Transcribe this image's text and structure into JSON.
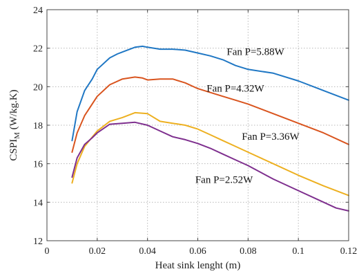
{
  "chart_data": {
    "type": "line",
    "xlabel": "Heat sink lenght (m)",
    "ylabel_main": "CSPI",
    "ylabel_sub": "M",
    "ylabel_unit": " (W/kg.K)",
    "xlim": [
      0,
      0.12
    ],
    "ylim": [
      12,
      24
    ],
    "x_ticks": [
      0,
      0.02,
      0.04,
      0.06,
      0.08,
      0.1,
      0.12
    ],
    "x_tick_labels": [
      "0",
      "0.02",
      "0.04",
      "0.06",
      "0.08",
      "0.1",
      "0.12"
    ],
    "y_ticks": [
      12,
      14,
      16,
      18,
      20,
      22,
      24
    ],
    "y_tick_labels": [
      "12",
      "14",
      "16",
      "18",
      "20",
      "22",
      "24"
    ],
    "grid": true,
    "series": [
      {
        "name": "Fan P=5.88W",
        "color": "#1f77c4",
        "label_at": [
          0.0715,
          21.65
        ],
        "x": [
          0.01,
          0.012,
          0.015,
          0.018,
          0.02,
          0.025,
          0.028,
          0.03,
          0.035,
          0.038,
          0.04,
          0.045,
          0.05,
          0.055,
          0.06,
          0.065,
          0.07,
          0.075,
          0.08,
          0.09,
          0.1,
          0.11,
          0.12
        ],
        "y": [
          17.2,
          18.7,
          19.8,
          20.4,
          20.9,
          21.5,
          21.7,
          21.8,
          22.05,
          22.1,
          22.05,
          21.95,
          21.95,
          21.9,
          21.75,
          21.6,
          21.4,
          21.1,
          20.9,
          20.7,
          20.3,
          19.8,
          19.3
        ]
      },
      {
        "name": "Fan P=4.32W",
        "color": "#d9541e",
        "label_at": [
          0.0635,
          19.75
        ],
        "x": [
          0.01,
          0.012,
          0.015,
          0.02,
          0.025,
          0.03,
          0.035,
          0.038,
          0.04,
          0.045,
          0.05,
          0.055,
          0.06,
          0.065,
          0.07,
          0.075,
          0.08,
          0.09,
          0.1,
          0.11,
          0.12
        ],
        "y": [
          16.6,
          17.6,
          18.5,
          19.5,
          20.1,
          20.4,
          20.5,
          20.45,
          20.35,
          20.4,
          20.4,
          20.2,
          19.9,
          19.7,
          19.5,
          19.3,
          19.1,
          18.6,
          18.1,
          17.6,
          17.0
        ]
      },
      {
        "name": "Fan P=3.36W",
        "color": "#edb020",
        "label_at": [
          0.0775,
          17.25
        ],
        "x": [
          0.01,
          0.012,
          0.015,
          0.02,
          0.025,
          0.03,
          0.035,
          0.04,
          0.045,
          0.05,
          0.055,
          0.06,
          0.065,
          0.07,
          0.075,
          0.08,
          0.09,
          0.1,
          0.11,
          0.12
        ],
        "y": [
          15.0,
          16.0,
          16.9,
          17.7,
          18.2,
          18.4,
          18.65,
          18.6,
          18.2,
          18.1,
          18.0,
          17.8,
          17.5,
          17.2,
          16.9,
          16.6,
          16.0,
          15.4,
          14.85,
          14.35
        ]
      },
      {
        "name": "Fan P=2.52W",
        "color": "#7e2f8e",
        "label_at": [
          0.059,
          15.0
        ],
        "x": [
          0.01,
          0.012,
          0.015,
          0.018,
          0.02,
          0.025,
          0.03,
          0.035,
          0.04,
          0.045,
          0.05,
          0.055,
          0.06,
          0.065,
          0.07,
          0.075,
          0.08,
          0.09,
          0.1,
          0.11,
          0.115,
          0.12
        ],
        "y": [
          15.3,
          16.3,
          17.0,
          17.35,
          17.6,
          18.05,
          18.1,
          18.15,
          18.0,
          17.7,
          17.4,
          17.25,
          17.05,
          16.8,
          16.5,
          16.2,
          15.9,
          15.2,
          14.6,
          14.0,
          13.7,
          13.55
        ]
      }
    ]
  }
}
